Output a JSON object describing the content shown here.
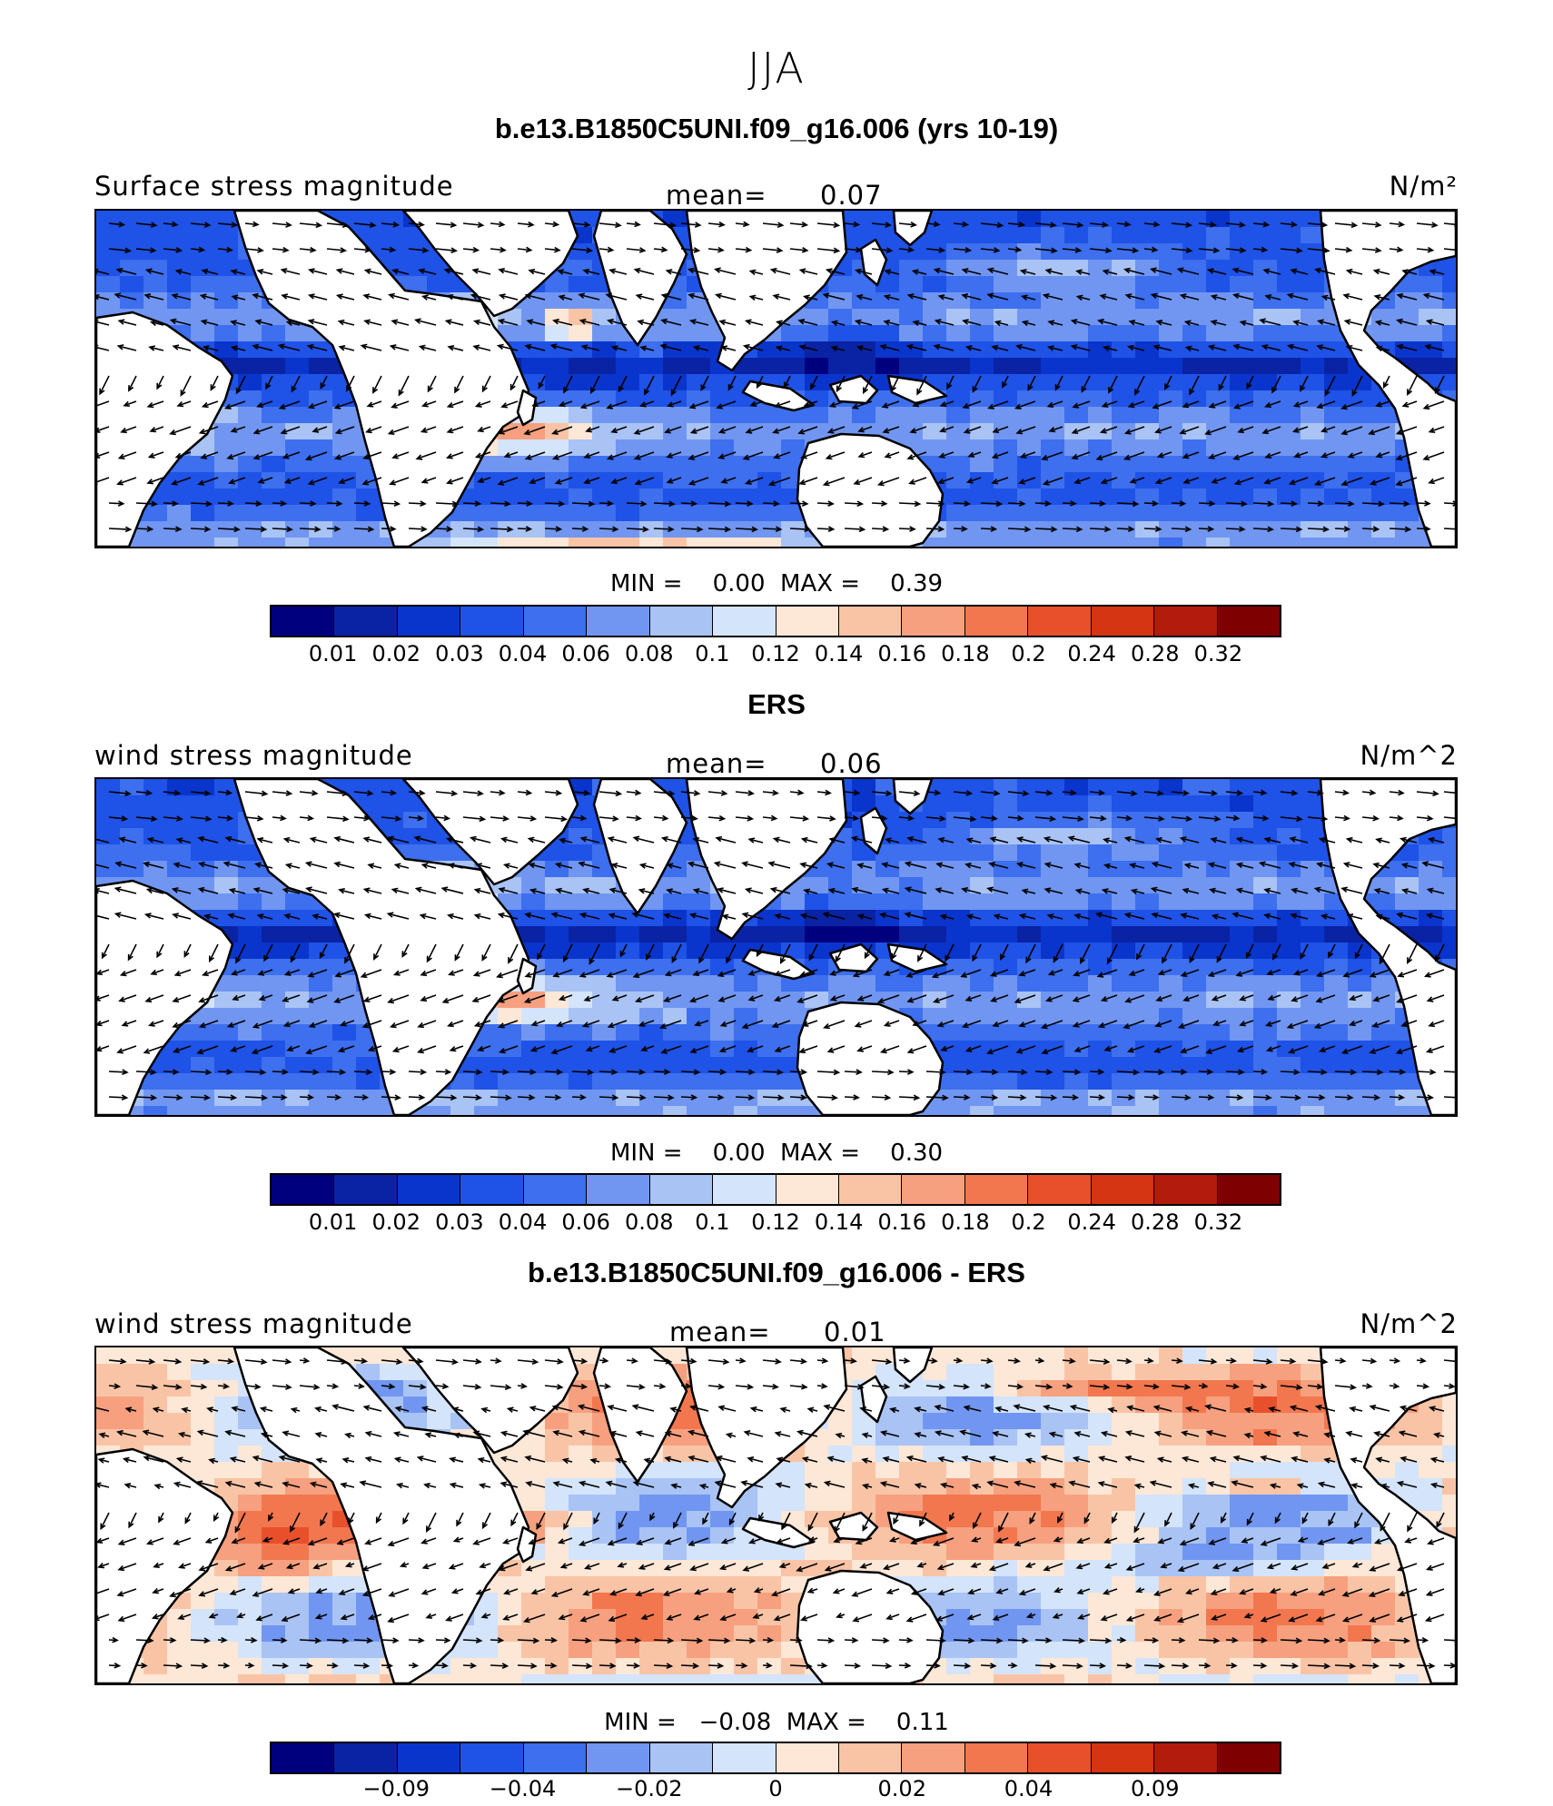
{
  "figure": {
    "season": "JJA",
    "panels": [
      {
        "title": "b.e13.B1850C5UNI.f09_g16.006 (yrs 10-19)",
        "left_label": "Surface stress magnitude",
        "mean_label": "mean=",
        "mean_value": "0.07",
        "units": "N/m²",
        "minmax": "MIN =    0.00  MAX =    0.39",
        "colorbar_ticks": [
          "0.01",
          "0.02",
          "0.03",
          "0.04",
          "0.06",
          "0.08",
          "0.1",
          "0.12",
          "0.14",
          "0.16",
          "0.18",
          "0.2",
          "0.24",
          "0.28",
          "0.32"
        ],
        "palette": "seq"
      },
      {
        "title": "ERS",
        "left_label": "wind stress magnitude",
        "mean_label": "mean=",
        "mean_value": "0.06",
        "units": "N/m^2",
        "minmax": "MIN =    0.00  MAX =    0.30",
        "colorbar_ticks": [
          "0.01",
          "0.02",
          "0.03",
          "0.04",
          "0.06",
          "0.08",
          "0.1",
          "0.12",
          "0.14",
          "0.16",
          "0.18",
          "0.2",
          "0.24",
          "0.28",
          "0.32"
        ],
        "palette": "seq"
      },
      {
        "title": "b.e13.B1850C5UNI.f09_g16.006 - ERS",
        "left_label": "wind stress magnitude",
        "mean_label": "mean=",
        "mean_value": "0.01",
        "units": "N/m^2",
        "minmax": "MIN =   −0.08  MAX =    0.11",
        "colorbar_ticks": [
          "−0.09",
          "−0.04",
          "−0.02",
          "0",
          "0.02",
          "0.04",
          "0.09"
        ],
        "palette": "div"
      }
    ]
  },
  "colors": {
    "scale": [
      "#00007f",
      "#0a23a4",
      "#0a35cc",
      "#1f52e6",
      "#3d6fee",
      "#7196f1",
      "#a9c3f5",
      "#d4e4fa",
      "#fde7d7",
      "#f9c4a6",
      "#f6a07f",
      "#f2774f",
      "#e8502c",
      "#d53512",
      "#b31b0c",
      "#7f0000"
    ],
    "land": "#ffffff",
    "coast": "#000000"
  },
  "chart_data": [
    {
      "type": "heatmap",
      "title": "b.e13.B1850C5UNI.f09_g16.006 (yrs 10-19)",
      "variable": "Surface stress magnitude",
      "units": "N/m²",
      "mean": 0.07,
      "min": 0.0,
      "max": 0.39,
      "levels": [
        0.01,
        0.02,
        0.03,
        0.04,
        0.06,
        0.08,
        0.1,
        0.12,
        0.14,
        0.16,
        0.18,
        0.2,
        0.24,
        0.28,
        0.32
      ]
    },
    {
      "type": "heatmap",
      "title": "ERS",
      "variable": "wind stress magnitude",
      "units": "N/m^2",
      "mean": 0.06,
      "min": 0.0,
      "max": 0.3,
      "levels": [
        0.01,
        0.02,
        0.03,
        0.04,
        0.06,
        0.08,
        0.1,
        0.12,
        0.14,
        0.16,
        0.18,
        0.2,
        0.24,
        0.28,
        0.32
      ]
    },
    {
      "type": "heatmap",
      "title": "b.e13.B1850C5UNI.f09_g16.006 - ERS",
      "variable": "wind stress magnitude",
      "units": "N/m^2",
      "mean": 0.01,
      "min": -0.08,
      "max": 0.11,
      "levels": [
        -0.09,
        -0.04,
        -0.02,
        0,
        0.02,
        0.04,
        0.09
      ]
    }
  ]
}
